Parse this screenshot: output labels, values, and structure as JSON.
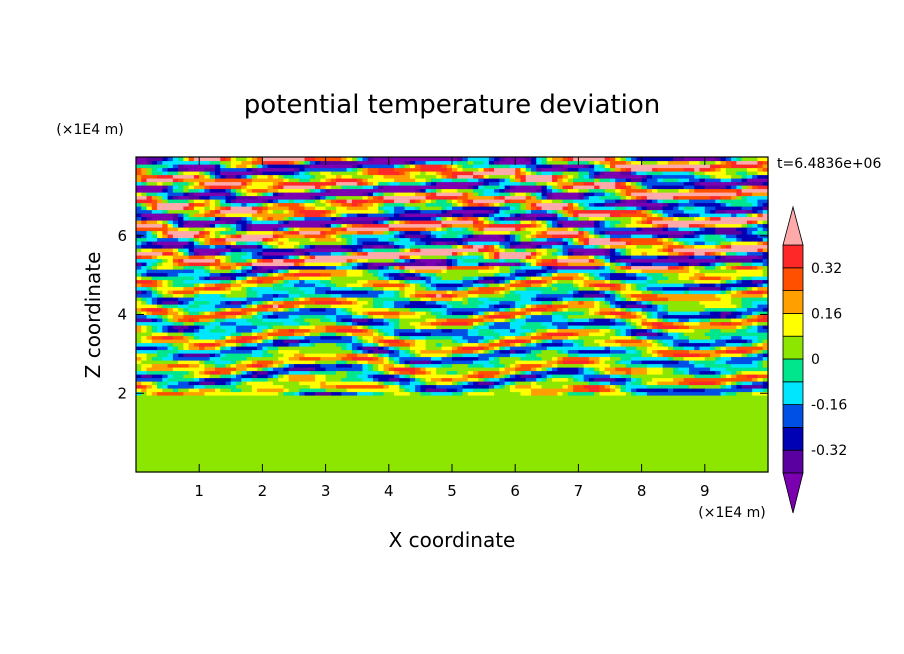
{
  "chart_data": {
    "type": "heatmap",
    "title": "potential temperature deviation",
    "xlabel": "X coordinate",
    "ylabel": "Z coordinate",
    "x_unit": "(×1E4 m)",
    "y_unit": "(×1E4 m)",
    "time_label": "t=6.4836e+06",
    "xlim": [
      0,
      10
    ],
    "ylim": [
      0,
      8
    ],
    "x_ticks": [
      1,
      2,
      3,
      4,
      5,
      6,
      7,
      8,
      9
    ],
    "y_ticks": [
      2,
      4,
      6
    ],
    "colorbar": {
      "levels": [
        -0.4,
        -0.32,
        -0.24,
        -0.16,
        -0.08,
        0,
        0.08,
        0.16,
        0.24,
        0.32,
        0.4
      ],
      "labels": [
        "0.32",
        "0.16",
        "0",
        "-0.16",
        "-0.32"
      ],
      "label_values": [
        0.32,
        0.16,
        0,
        -0.16,
        -0.32
      ],
      "over_color": "#ffaaaa",
      "under_color": "#7a00b0",
      "colors": [
        "#5a00a0",
        "#0000b4",
        "#0050e6",
        "#00e6ff",
        "#00e68c",
        "#8ce600",
        "#ffff00",
        "#ffa000",
        "#ff5000",
        "#ff2828"
      ]
    },
    "field": {
      "description_bands": [
        {
          "z": [
            0,
            2
          ],
          "mean": 0.02,
          "noise": 0.05
        },
        {
          "z": [
            2,
            5.2
          ],
          "mean": 0.0,
          "noise": 0.35
        },
        {
          "z": [
            5.2,
            8
          ],
          "mean": 0.0,
          "noise": 0.6
        }
      ]
    }
  }
}
